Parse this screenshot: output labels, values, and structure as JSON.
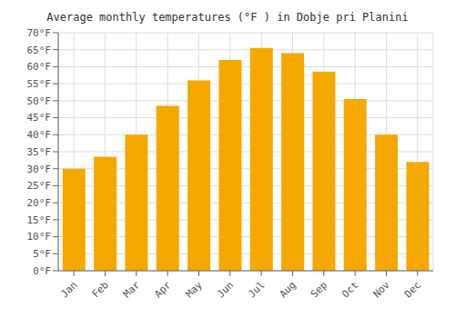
{
  "chart_data": {
    "type": "bar",
    "title": "Average monthly temperatures (°F ) in Dobje pri Planini",
    "categories": [
      "Jan",
      "Feb",
      "Mar",
      "Apr",
      "May",
      "Jun",
      "Jul",
      "Aug",
      "Sep",
      "Oct",
      "Nov",
      "Dec"
    ],
    "values": [
      30,
      33.5,
      40,
      48.5,
      56,
      62,
      65.5,
      64,
      58.5,
      50.5,
      40,
      32
    ],
    "color": "#F5A800",
    "ylim": [
      0,
      70
    ],
    "yticks": [
      {
        "value": 0,
        "label": "0°F"
      },
      {
        "value": 5,
        "label": "5°F"
      },
      {
        "value": 10,
        "label": "10°F"
      },
      {
        "value": 15,
        "label": "15°F"
      },
      {
        "value": 20,
        "label": "20°F"
      },
      {
        "value": 25,
        "label": "25°F"
      },
      {
        "value": 30,
        "label": "30°F"
      },
      {
        "value": 35,
        "label": "35°F"
      },
      {
        "value": 40,
        "label": "40°F"
      },
      {
        "value": 45,
        "label": "45°F"
      },
      {
        "value": 50,
        "label": "50°F"
      },
      {
        "value": 55,
        "label": "55°F"
      },
      {
        "value": 60,
        "label": "60°F"
      },
      {
        "value": 65,
        "label": "65°F"
      },
      {
        "value": 70,
        "label": "70°F"
      }
    ],
    "grid": true
  }
}
